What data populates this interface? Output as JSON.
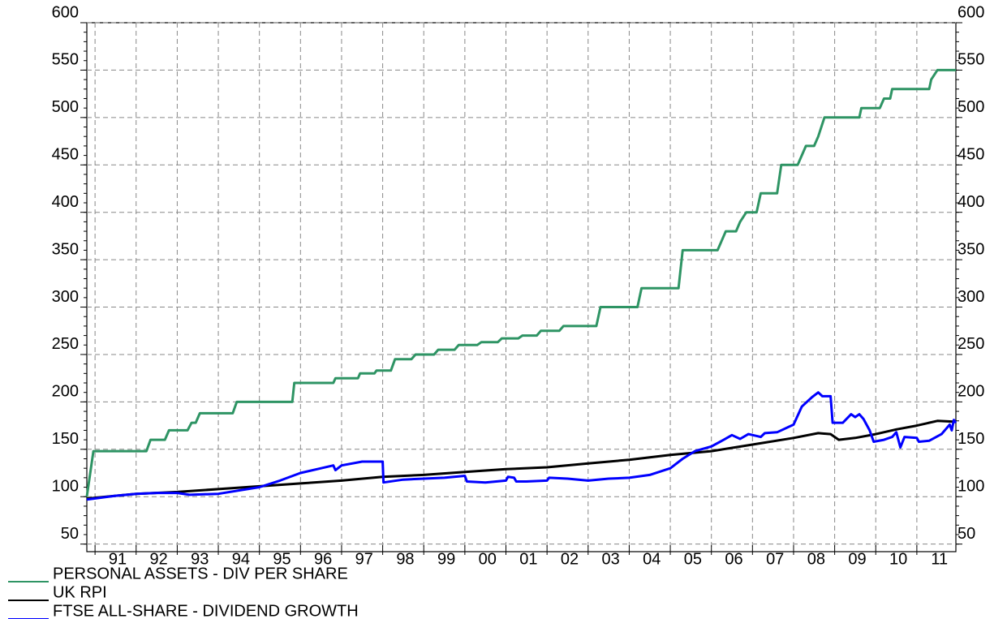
{
  "chart_data": {
    "type": "line",
    "xlim": [
      1990.8,
      2011.95
    ],
    "xticks": [
      {
        "value": 1991,
        "label": "91"
      },
      {
        "value": 1992,
        "label": "92"
      },
      {
        "value": 1993,
        "label": "93"
      },
      {
        "value": 1994,
        "label": "94"
      },
      {
        "value": 1995,
        "label": "95"
      },
      {
        "value": 1996,
        "label": "96"
      },
      {
        "value": 1997,
        "label": "97"
      },
      {
        "value": 1998,
        "label": "98"
      },
      {
        "value": 1999,
        "label": "99"
      },
      {
        "value": 2000,
        "label": "00"
      },
      {
        "value": 2001,
        "label": "01"
      },
      {
        "value": 2002,
        "label": "02"
      },
      {
        "value": 2003,
        "label": "03"
      },
      {
        "value": 2004,
        "label": "04"
      },
      {
        "value": 2005,
        "label": "05"
      },
      {
        "value": 2006,
        "label": "06"
      },
      {
        "value": 2007,
        "label": "07"
      },
      {
        "value": 2008,
        "label": "08"
      },
      {
        "value": 2009,
        "label": "09"
      },
      {
        "value": 2010,
        "label": "10"
      },
      {
        "value": 2011,
        "label": "11"
      }
    ],
    "ylim": [
      42,
      600
    ],
    "yticks": [
      50,
      100,
      150,
      200,
      250,
      300,
      350,
      400,
      450,
      500,
      550,
      600
    ],
    "grid": true,
    "legend": "bottom-left",
    "series": [
      {
        "name": "PERSONAL ASSETS - DIV PER SHARE",
        "color": "#2e9464",
        "x": [
          1990.8,
          1990.96,
          1992.25,
          1992.35,
          1992.7,
          1992.8,
          1993.25,
          1993.35,
          1993.45,
          1993.55,
          1994.35,
          1994.45,
          1995.8,
          1995.85,
          1996.8,
          1996.85,
          1997.4,
          1997.45,
          1997.8,
          1997.85,
          1998.2,
          1998.3,
          1998.7,
          1998.8,
          1999.25,
          1999.35,
          1999.75,
          1999.85,
          2000.3,
          2000.4,
          2000.8,
          2000.9,
          2001.3,
          2001.4,
          2001.75,
          2001.85,
          2002.3,
          2002.4,
          2003.2,
          2003.3,
          2004.2,
          2004.3,
          2005.2,
          2005.3,
          2006.15,
          2006.25,
          2006.35,
          2006.6,
          2006.7,
          2006.85,
          2007.1,
          2007.2,
          2007.6,
          2007.7,
          2008.1,
          2008.2,
          2008.3,
          2008.5,
          2008.6,
          2008.75,
          2009.6,
          2009.65,
          2010.1,
          2010.2,
          2010.35,
          2010.4,
          2011.3,
          2011.35,
          2011.5,
          2011.95
        ],
        "values": [
          100,
          148,
          148,
          160,
          160,
          170,
          170,
          178,
          178,
          188,
          188,
          200,
          200,
          220,
          220,
          225,
          225,
          230,
          230,
          233,
          233,
          245,
          245,
          250,
          250,
          255,
          255,
          260,
          260,
          263,
          263,
          267,
          267,
          270,
          270,
          275,
          275,
          280,
          280,
          300,
          300,
          320,
          320,
          360,
          360,
          370,
          380,
          380,
          390,
          400,
          400,
          420,
          420,
          450,
          450,
          460,
          470,
          470,
          480,
          500,
          500,
          510,
          510,
          520,
          520,
          530,
          530,
          540,
          550,
          550
        ]
      },
      {
        "name": "UK RPI",
        "color": "#000000",
        "x": [
          1990.8,
          1991.5,
          1992,
          1993,
          1994,
          1995,
          1996,
          1997,
          1998,
          1999,
          2000,
          2001,
          2002,
          2003,
          2004,
          2005,
          2006,
          2007,
          2008,
          2008.6,
          2008.9,
          2009.1,
          2009.5,
          2010,
          2010.5,
          2011,
          2011.5,
          2011.95
        ],
        "values": [
          98,
          101,
          103,
          105,
          108,
          111,
          114,
          117,
          121,
          123,
          126,
          129,
          131,
          135,
          139,
          144,
          148,
          155,
          162,
          167,
          166,
          160,
          162,
          166,
          171,
          175,
          180,
          179
        ]
      },
      {
        "name": "FTSE ALL-SHARE - DIVIDEND GROWTH",
        "color": "#0000ff",
        "x": [
          1990.8,
          1991.5,
          1992,
          1992.5,
          1993,
          1993.3,
          1994,
          1995,
          1995.5,
          1996,
          1996.5,
          1996.8,
          1996.85,
          1997,
          1997.5,
          1998,
          1998.02,
          1998.5,
          1999,
          1999.5,
          2000,
          2000.05,
          2000.5,
          2001,
          2001.05,
          2001.2,
          2001.25,
          2001.5,
          2002,
          2002.05,
          2002.5,
          2003,
          2003.5,
          2004,
          2004.5,
          2005,
          2005.3,
          2005.6,
          2006,
          2006.3,
          2006.5,
          2006.7,
          2006.9,
          2007.2,
          2007.3,
          2007.6,
          2008,
          2008.2,
          2008.45,
          2008.6,
          2008.7,
          2008.9,
          2008.95,
          2009.2,
          2009.4,
          2009.5,
          2009.6,
          2009.7,
          2009.85,
          2009.95,
          2010.2,
          2010.4,
          2010.5,
          2010.6,
          2010.7,
          2011,
          2011.05,
          2011.3,
          2011.6,
          2011.7,
          2011.8,
          2011.85,
          2011.9,
          2011.95
        ],
        "values": [
          97,
          101,
          103,
          104,
          104,
          102,
          103,
          110,
          117,
          125,
          130,
          133,
          128,
          133,
          137,
          137,
          115,
          118,
          119,
          120,
          122,
          116,
          115,
          117,
          121,
          120,
          116,
          116,
          117,
          120,
          119,
          117,
          119,
          120,
          123,
          130,
          140,
          148,
          153,
          160,
          165,
          161,
          166,
          163,
          167,
          168,
          176,
          195,
          205,
          210,
          206,
          206,
          178,
          178,
          187,
          184,
          187,
          182,
          170,
          158,
          160,
          163,
          168,
          152,
          163,
          162,
          158,
          159,
          166,
          171,
          176,
          170,
          181,
          178
        ]
      }
    ]
  }
}
